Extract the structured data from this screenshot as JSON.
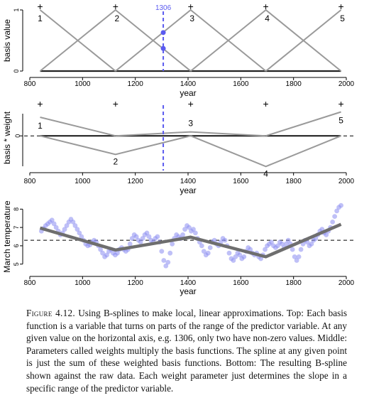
{
  "chart_data": [
    {
      "type": "line",
      "panel": "top",
      "title": "",
      "xlabel": "year",
      "ylabel": "basis value",
      "xlim": [
        800,
        2000
      ],
      "ylim": [
        0,
        1
      ],
      "x_ticks": [
        "800",
        "1000",
        "1200",
        "1400",
        "1600",
        "1800",
        "2000"
      ],
      "y_ticks": [
        "0",
        "1"
      ],
      "knots": [
        839,
        1125,
        1410,
        1695,
        1980
      ],
      "knot_marker": "+",
      "series": [
        {
          "label": "1",
          "x": [
            839,
            1125
          ],
          "y": [
            1,
            0
          ]
        },
        {
          "label": "2",
          "x": [
            839,
            1125,
            1410
          ],
          "y": [
            0,
            1,
            0
          ]
        },
        {
          "label": "3",
          "x": [
            1125,
            1410,
            1695
          ],
          "y": [
            0,
            1,
            0
          ]
        },
        {
          "label": "4",
          "x": [
            1410,
            1695,
            1980
          ],
          "y": [
            0,
            1,
            0
          ]
        },
        {
          "label": "5",
          "x": [
            1695,
            1980
          ],
          "y": [
            0,
            1
          ]
        }
      ],
      "marker_year": {
        "label": "1306",
        "x": 1306
      },
      "marker_points": [
        0.63,
        0.37
      ]
    },
    {
      "type": "line",
      "panel": "middle",
      "title": "",
      "xlabel": "year",
      "ylabel": "basis * weight",
      "xlim": [
        800,
        2000
      ],
      "ylim": [
        -1.25,
        1.1
      ],
      "x_ticks": [
        "800",
        "1000",
        "1200",
        "1400",
        "1600",
        "1800",
        "2000"
      ],
      "y_ticks": [
        "0"
      ],
      "zero_line": "dashed",
      "marker_year": {
        "x": 1306
      },
      "series": [
        {
          "label": "1",
          "x": [
            839,
            1125
          ],
          "y": [
            0.7,
            0
          ]
        },
        {
          "label": "2",
          "x": [
            839,
            1125,
            1410
          ],
          "y": [
            0,
            -0.7,
            0
          ]
        },
        {
          "label": "3",
          "x": [
            1125,
            1410,
            1695
          ],
          "y": [
            0,
            0.15,
            0
          ]
        },
        {
          "label": "4",
          "x": [
            1410,
            1695,
            1980
          ],
          "y": [
            0,
            -1.15,
            0
          ]
        },
        {
          "label": "5",
          "x": [
            1695,
            1980
          ],
          "y": [
            0,
            0.9
          ]
        }
      ]
    },
    {
      "type": "scatter",
      "panel": "bottom",
      "title": "",
      "xlabel": "year",
      "ylabel": "March temperature",
      "xlim": [
        800,
        2000
      ],
      "ylim": [
        4.6,
        8.4
      ],
      "x_ticks": [
        "800",
        "1000",
        "1200",
        "1400",
        "1600",
        "1800",
        "2000"
      ],
      "y_ticks": [
        "5",
        "6",
        "7",
        "8"
      ],
      "reference_line": {
        "y": 6.3,
        "style": "dashed"
      },
      "point_color": "#8a8cf0",
      "points": [
        [
          844,
          6.8
        ],
        [
          852,
          6.95
        ],
        [
          860,
          7.1
        ],
        [
          868,
          7.2
        ],
        [
          876,
          7.3
        ],
        [
          884,
          7.4
        ],
        [
          892,
          7.2
        ],
        [
          900,
          7.0
        ],
        [
          908,
          6.8
        ],
        [
          916,
          6.6
        ],
        [
          924,
          6.7
        ],
        [
          932,
          6.9
        ],
        [
          940,
          7.1
        ],
        [
          948,
          7.3
        ],
        [
          956,
          7.45
        ],
        [
          964,
          7.3
        ],
        [
          972,
          7.1
        ],
        [
          980,
          6.9
        ],
        [
          988,
          6.7
        ],
        [
          996,
          6.5
        ],
        [
          1004,
          6.3
        ],
        [
          1012,
          6.1
        ],
        [
          1020,
          6.0
        ],
        [
          1028,
          6.05
        ],
        [
          1036,
          6.2
        ],
        [
          1044,
          6.3
        ],
        [
          1052,
          6.2
        ],
        [
          1060,
          6.0
        ],
        [
          1068,
          5.8
        ],
        [
          1076,
          5.6
        ],
        [
          1084,
          5.4
        ],
        [
          1092,
          5.5
        ],
        [
          1100,
          5.7
        ],
        [
          1108,
          5.8
        ],
        [
          1116,
          5.6
        ],
        [
          1124,
          5.5
        ],
        [
          1132,
          5.6
        ],
        [
          1140,
          5.8
        ],
        [
          1148,
          5.9
        ],
        [
          1156,
          5.8
        ],
        [
          1164,
          5.7
        ],
        [
          1172,
          5.8
        ],
        [
          1180,
          6.1
        ],
        [
          1188,
          6.4
        ],
        [
          1196,
          6.6
        ],
        [
          1204,
          6.5
        ],
        [
          1212,
          6.3
        ],
        [
          1220,
          6.2
        ],
        [
          1228,
          6.4
        ],
        [
          1236,
          6.6
        ],
        [
          1244,
          6.7
        ],
        [
          1252,
          6.5
        ],
        [
          1260,
          6.3
        ],
        [
          1268,
          6.2
        ],
        [
          1276,
          6.4
        ],
        [
          1284,
          6.5
        ],
        [
          1292,
          6.2
        ],
        [
          1300,
          5.7
        ],
        [
          1308,
          5.2
        ],
        [
          1316,
          4.9
        ],
        [
          1324,
          5.1
        ],
        [
          1332,
          5.6
        ],
        [
          1340,
          6.1
        ],
        [
          1348,
          6.4
        ],
        [
          1356,
          6.6
        ],
        [
          1364,
          6.5
        ],
        [
          1372,
          6.4
        ],
        [
          1380,
          6.6
        ],
        [
          1388,
          6.9
        ],
        [
          1396,
          7.1
        ],
        [
          1404,
          7.0
        ],
        [
          1412,
          6.8
        ],
        [
          1420,
          6.9
        ],
        [
          1428,
          6.7
        ],
        [
          1436,
          6.4
        ],
        [
          1444,
          6.2
        ],
        [
          1452,
          6.0
        ],
        [
          1460,
          5.7
        ],
        [
          1468,
          5.5
        ],
        [
          1476,
          5.6
        ],
        [
          1484,
          5.9
        ],
        [
          1492,
          6.2
        ],
        [
          1500,
          6.3
        ],
        [
          1508,
          6.1
        ],
        [
          1516,
          6.0
        ],
        [
          1524,
          6.2
        ],
        [
          1532,
          6.4
        ],
        [
          1540,
          6.3
        ],
        [
          1548,
          6.0
        ],
        [
          1556,
          5.6
        ],
        [
          1564,
          5.3
        ],
        [
          1572,
          5.2
        ],
        [
          1580,
          5.4
        ],
        [
          1588,
          5.6
        ],
        [
          1596,
          5.5
        ],
        [
          1604,
          5.3
        ],
        [
          1612,
          5.4
        ],
        [
          1620,
          5.7
        ],
        [
          1628,
          5.9
        ],
        [
          1636,
          5.8
        ],
        [
          1644,
          5.6
        ],
        [
          1652,
          5.5
        ],
        [
          1660,
          5.6
        ],
        [
          1668,
          5.4
        ],
        [
          1676,
          5.3
        ],
        [
          1684,
          5.5
        ],
        [
          1692,
          5.8
        ],
        [
          1700,
          6.0
        ],
        [
          1708,
          6.1
        ],
        [
          1716,
          6.2
        ],
        [
          1724,
          6.0
        ],
        [
          1732,
          5.9
        ],
        [
          1740,
          6.0
        ],
        [
          1748,
          6.2
        ],
        [
          1756,
          6.1
        ],
        [
          1764,
          5.9
        ],
        [
          1772,
          6.1
        ],
        [
          1780,
          6.3
        ],
        [
          1788,
          6.1
        ],
        [
          1796,
          5.8
        ],
        [
          1804,
          5.4
        ],
        [
          1812,
          5.2
        ],
        [
          1820,
          5.4
        ],
        [
          1828,
          5.8
        ],
        [
          1836,
          6.1
        ],
        [
          1844,
          6.3
        ],
        [
          1852,
          6.2
        ],
        [
          1860,
          6.0
        ],
        [
          1868,
          6.1
        ],
        [
          1876,
          6.3
        ],
        [
          1884,
          6.4
        ],
        [
          1892,
          6.6
        ],
        [
          1900,
          6.8
        ],
        [
          1908,
          6.9
        ],
        [
          1916,
          6.7
        ],
        [
          1924,
          6.6
        ],
        [
          1932,
          6.8
        ],
        [
          1940,
          7.0
        ],
        [
          1948,
          7.3
        ],
        [
          1956,
          7.6
        ],
        [
          1964,
          7.9
        ],
        [
          1972,
          8.1
        ],
        [
          1980,
          8.2
        ]
      ],
      "spline": {
        "x": [
          839,
          1125,
          1410,
          1695,
          1980
        ],
        "y": [
          6.97,
          5.77,
          6.47,
          5.4,
          7.17
        ]
      }
    }
  ],
  "caption": {
    "label": "Figure 4.12.",
    "text": "Using B-splines to make local, linear approximations. Top: Each basis function is a variable that turns on parts of the range of the predictor variable. At any given value on the horizontal axis, e.g. 1306, only two have non-zero values. Middle: Parameters called weights multiply the basis functions. The spline at any given point is just the sum of these weighted basis functions. Bottom: The resulting B-spline shown against the raw data. Each weight parameter just determines the slope in a specific range of the predictor variable."
  },
  "colors": {
    "basis_line": "#9a9a9a",
    "spline_line": "#6e6e6e",
    "marker_line": "#5a5af0",
    "points": "#8a8cf0"
  }
}
